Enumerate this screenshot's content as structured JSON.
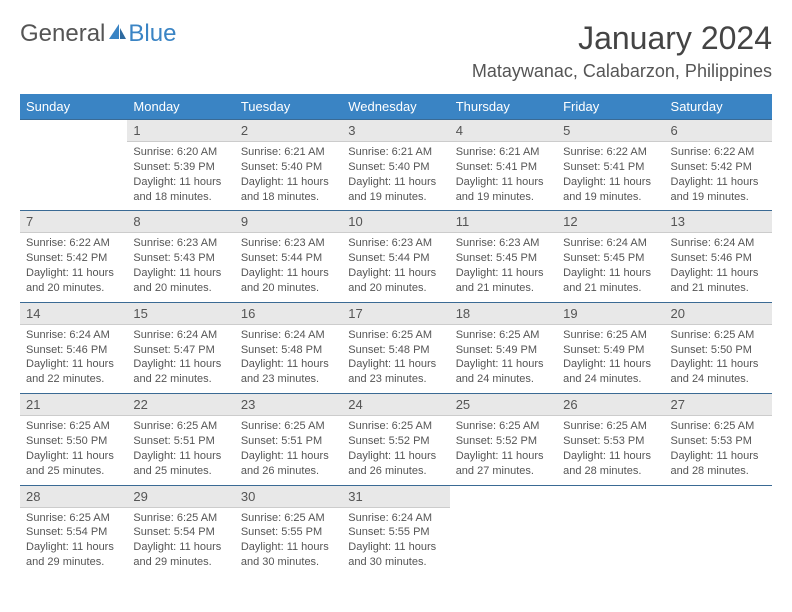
{
  "colors": {
    "header_bg": "#3a84c4",
    "header_text": "#ffffff",
    "daynum_bg": "#e8e8e8",
    "daynum_rule": "#3a6a94",
    "text": "#555555",
    "bg": "#ffffff"
  },
  "logo": {
    "part1": "General",
    "part2": "Blue",
    "icon_color": "#3a84c4"
  },
  "title": "January 2024",
  "location": "Mataywanac, Calabarzon, Philippines",
  "weekdays": [
    "Sunday",
    "Monday",
    "Tuesday",
    "Wednesday",
    "Thursday",
    "Friday",
    "Saturday"
  ],
  "start_offset": 1,
  "days": [
    {
      "n": "1",
      "sr": "6:20 AM",
      "ss": "5:39 PM",
      "dl": "11 hours and 18 minutes."
    },
    {
      "n": "2",
      "sr": "6:21 AM",
      "ss": "5:40 PM",
      "dl": "11 hours and 18 minutes."
    },
    {
      "n": "3",
      "sr": "6:21 AM",
      "ss": "5:40 PM",
      "dl": "11 hours and 19 minutes."
    },
    {
      "n": "4",
      "sr": "6:21 AM",
      "ss": "5:41 PM",
      "dl": "11 hours and 19 minutes."
    },
    {
      "n": "5",
      "sr": "6:22 AM",
      "ss": "5:41 PM",
      "dl": "11 hours and 19 minutes."
    },
    {
      "n": "6",
      "sr": "6:22 AM",
      "ss": "5:42 PM",
      "dl": "11 hours and 19 minutes."
    },
    {
      "n": "7",
      "sr": "6:22 AM",
      "ss": "5:42 PM",
      "dl": "11 hours and 20 minutes."
    },
    {
      "n": "8",
      "sr": "6:23 AM",
      "ss": "5:43 PM",
      "dl": "11 hours and 20 minutes."
    },
    {
      "n": "9",
      "sr": "6:23 AM",
      "ss": "5:44 PM",
      "dl": "11 hours and 20 minutes."
    },
    {
      "n": "10",
      "sr": "6:23 AM",
      "ss": "5:44 PM",
      "dl": "11 hours and 20 minutes."
    },
    {
      "n": "11",
      "sr": "6:23 AM",
      "ss": "5:45 PM",
      "dl": "11 hours and 21 minutes."
    },
    {
      "n": "12",
      "sr": "6:24 AM",
      "ss": "5:45 PM",
      "dl": "11 hours and 21 minutes."
    },
    {
      "n": "13",
      "sr": "6:24 AM",
      "ss": "5:46 PM",
      "dl": "11 hours and 21 minutes."
    },
    {
      "n": "14",
      "sr": "6:24 AM",
      "ss": "5:46 PM",
      "dl": "11 hours and 22 minutes."
    },
    {
      "n": "15",
      "sr": "6:24 AM",
      "ss": "5:47 PM",
      "dl": "11 hours and 22 minutes."
    },
    {
      "n": "16",
      "sr": "6:24 AM",
      "ss": "5:48 PM",
      "dl": "11 hours and 23 minutes."
    },
    {
      "n": "17",
      "sr": "6:25 AM",
      "ss": "5:48 PM",
      "dl": "11 hours and 23 minutes."
    },
    {
      "n": "18",
      "sr": "6:25 AM",
      "ss": "5:49 PM",
      "dl": "11 hours and 24 minutes."
    },
    {
      "n": "19",
      "sr": "6:25 AM",
      "ss": "5:49 PM",
      "dl": "11 hours and 24 minutes."
    },
    {
      "n": "20",
      "sr": "6:25 AM",
      "ss": "5:50 PM",
      "dl": "11 hours and 24 minutes."
    },
    {
      "n": "21",
      "sr": "6:25 AM",
      "ss": "5:50 PM",
      "dl": "11 hours and 25 minutes."
    },
    {
      "n": "22",
      "sr": "6:25 AM",
      "ss": "5:51 PM",
      "dl": "11 hours and 25 minutes."
    },
    {
      "n": "23",
      "sr": "6:25 AM",
      "ss": "5:51 PM",
      "dl": "11 hours and 26 minutes."
    },
    {
      "n": "24",
      "sr": "6:25 AM",
      "ss": "5:52 PM",
      "dl": "11 hours and 26 minutes."
    },
    {
      "n": "25",
      "sr": "6:25 AM",
      "ss": "5:52 PM",
      "dl": "11 hours and 27 minutes."
    },
    {
      "n": "26",
      "sr": "6:25 AM",
      "ss": "5:53 PM",
      "dl": "11 hours and 28 minutes."
    },
    {
      "n": "27",
      "sr": "6:25 AM",
      "ss": "5:53 PM",
      "dl": "11 hours and 28 minutes."
    },
    {
      "n": "28",
      "sr": "6:25 AM",
      "ss": "5:54 PM",
      "dl": "11 hours and 29 minutes."
    },
    {
      "n": "29",
      "sr": "6:25 AM",
      "ss": "5:54 PM",
      "dl": "11 hours and 29 minutes."
    },
    {
      "n": "30",
      "sr": "6:25 AM",
      "ss": "5:55 PM",
      "dl": "11 hours and 30 minutes."
    },
    {
      "n": "31",
      "sr": "6:24 AM",
      "ss": "5:55 PM",
      "dl": "11 hours and 30 minutes."
    }
  ],
  "labels": {
    "sunrise": "Sunrise:",
    "sunset": "Sunset:",
    "daylight": "Daylight:"
  },
  "typography": {
    "title_fontsize": 32,
    "location_fontsize": 18,
    "header_fontsize": 13,
    "daynum_fontsize": 13,
    "body_fontsize": 11
  }
}
